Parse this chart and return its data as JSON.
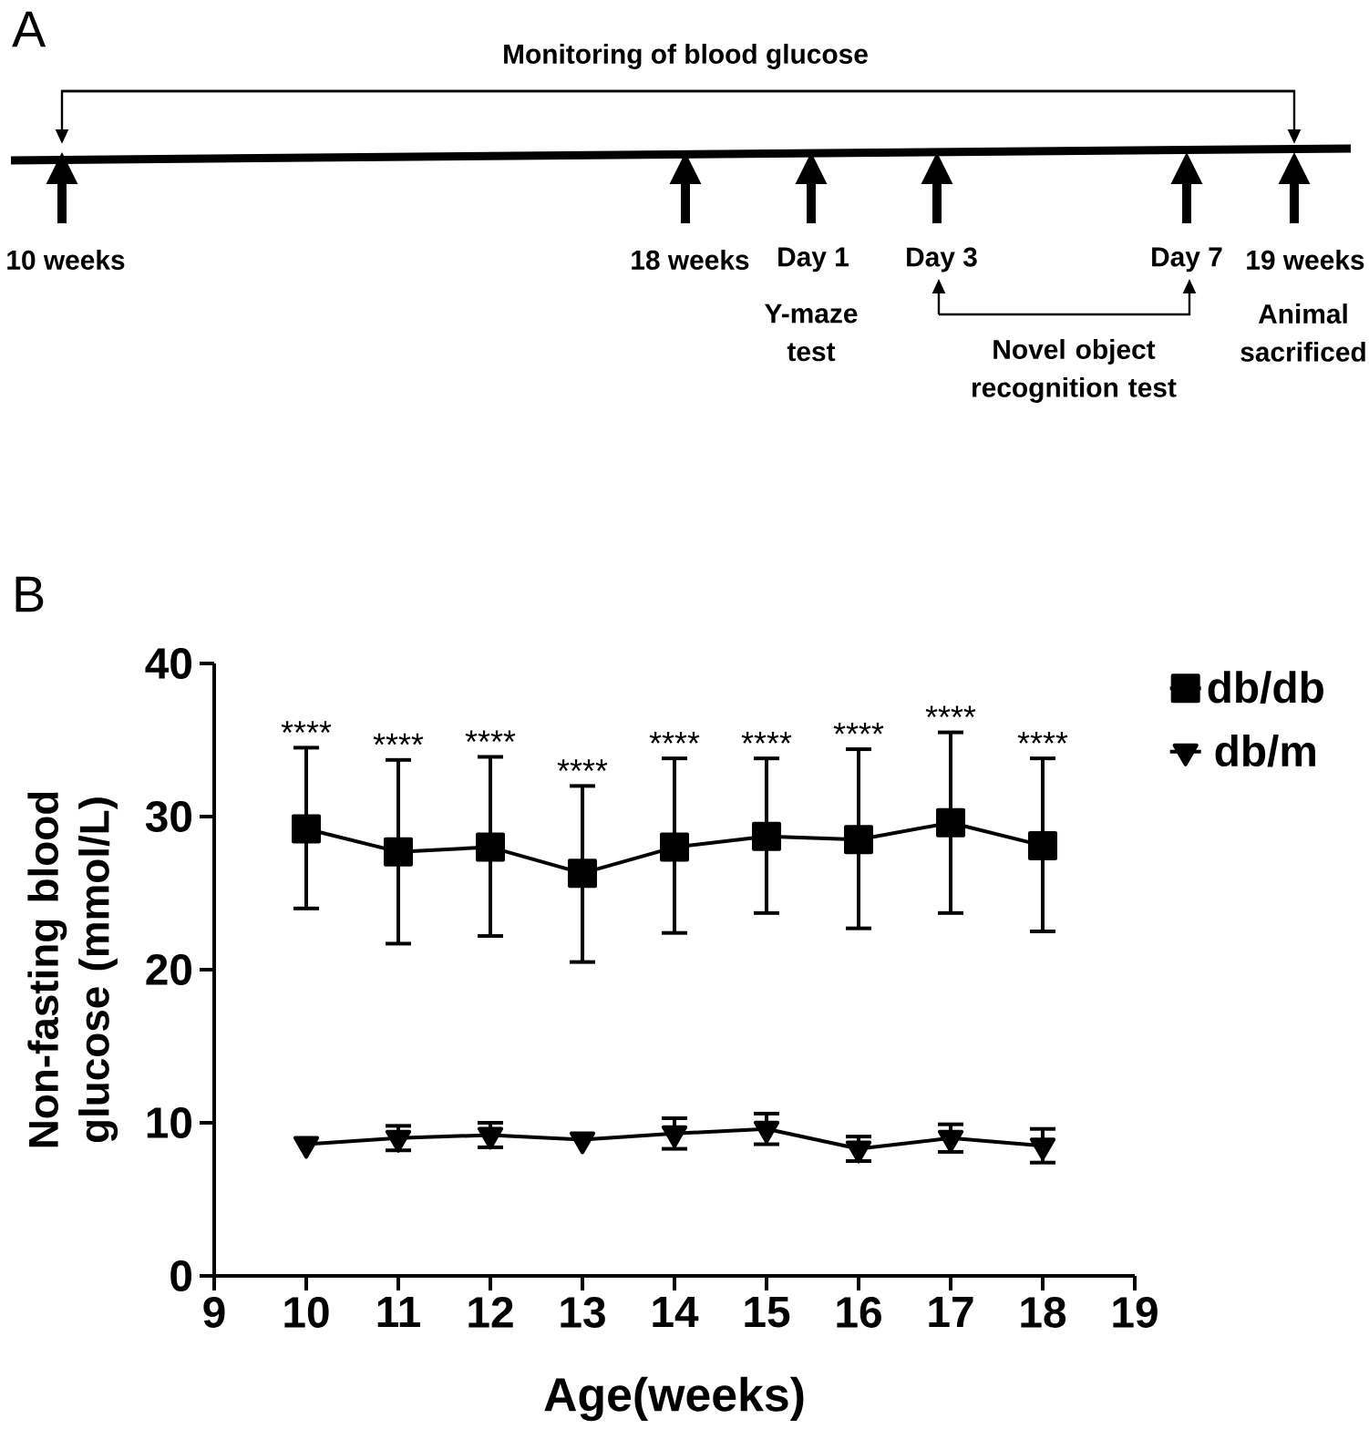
{
  "chart_data": [
    {
      "type": "other",
      "annotations": [
        "A",
        "Monitoring of blood glucose",
        "10 weeks",
        "18 weeks",
        "Day 1",
        "Day 3",
        "Day 7",
        "19 weeks",
        "Y-maze test",
        "Novel object recognition test",
        "Animal sacrificed"
      ]
    },
    {
      "type": "line",
      "xlabel": "Age(weeks)",
      "ylabel": "Non-fasting blood glucose (mmol/L)",
      "x": [
        10,
        11,
        12,
        13,
        14,
        15,
        16,
        17,
        18
      ],
      "xlim": [
        9,
        19
      ],
      "xticks": [
        9,
        10,
        11,
        12,
        13,
        14,
        15,
        16,
        17,
        18,
        19
      ],
      "ylim": [
        0,
        40
      ],
      "yticks": [
        0,
        10,
        20,
        30,
        40
      ],
      "legend": "top right",
      "series": [
        {
          "name": "db/db",
          "color": "#000000",
          "marker": "square",
          "values": [
            29.2,
            27.7,
            28.0,
            26.3,
            28.0,
            28.7,
            28.5,
            29.6,
            28.1
          ],
          "errors": [
            [
              24.0,
              34.5
            ],
            [
              21.7,
              33.7
            ],
            [
              22.2,
              33.9
            ],
            [
              20.5,
              32.0
            ],
            [
              22.4,
              33.8
            ],
            [
              23.7,
              33.8
            ],
            [
              22.7,
              34.4
            ],
            [
              23.7,
              35.5
            ],
            [
              22.5,
              33.8
            ]
          ]
        },
        {
          "name": "db/m",
          "color": "#000000",
          "marker": "triangle",
          "values": [
            8.6,
            9.0,
            9.2,
            8.9,
            9.3,
            9.6,
            8.3,
            9.0,
            8.5
          ],
          "errors": [
            null,
            0.8,
            0.8,
            null,
            1.0,
            1.0,
            0.8,
            0.9,
            1.1
          ]
        }
      ],
      "annotations": [
        "B",
        {
          "text": "****",
          "x": 10,
          "y": 34.5
        },
        {
          "text": "****",
          "x": 11,
          "y": 33.7
        },
        {
          "text": "****",
          "x": 12,
          "y": 33.9
        },
        {
          "text": "****",
          "x": 13,
          "y": 32.0
        },
        {
          "text": "****",
          "x": 14,
          "y": 33.8
        },
        {
          "text": "****",
          "x": 15,
          "y": 33.8
        },
        {
          "text": "****",
          "x": 16,
          "y": 34.4
        },
        {
          "text": "****",
          "x": 17,
          "y": 35.5
        },
        {
          "text": "****",
          "x": 18,
          "y": 33.8
        }
      ]
    }
  ]
}
